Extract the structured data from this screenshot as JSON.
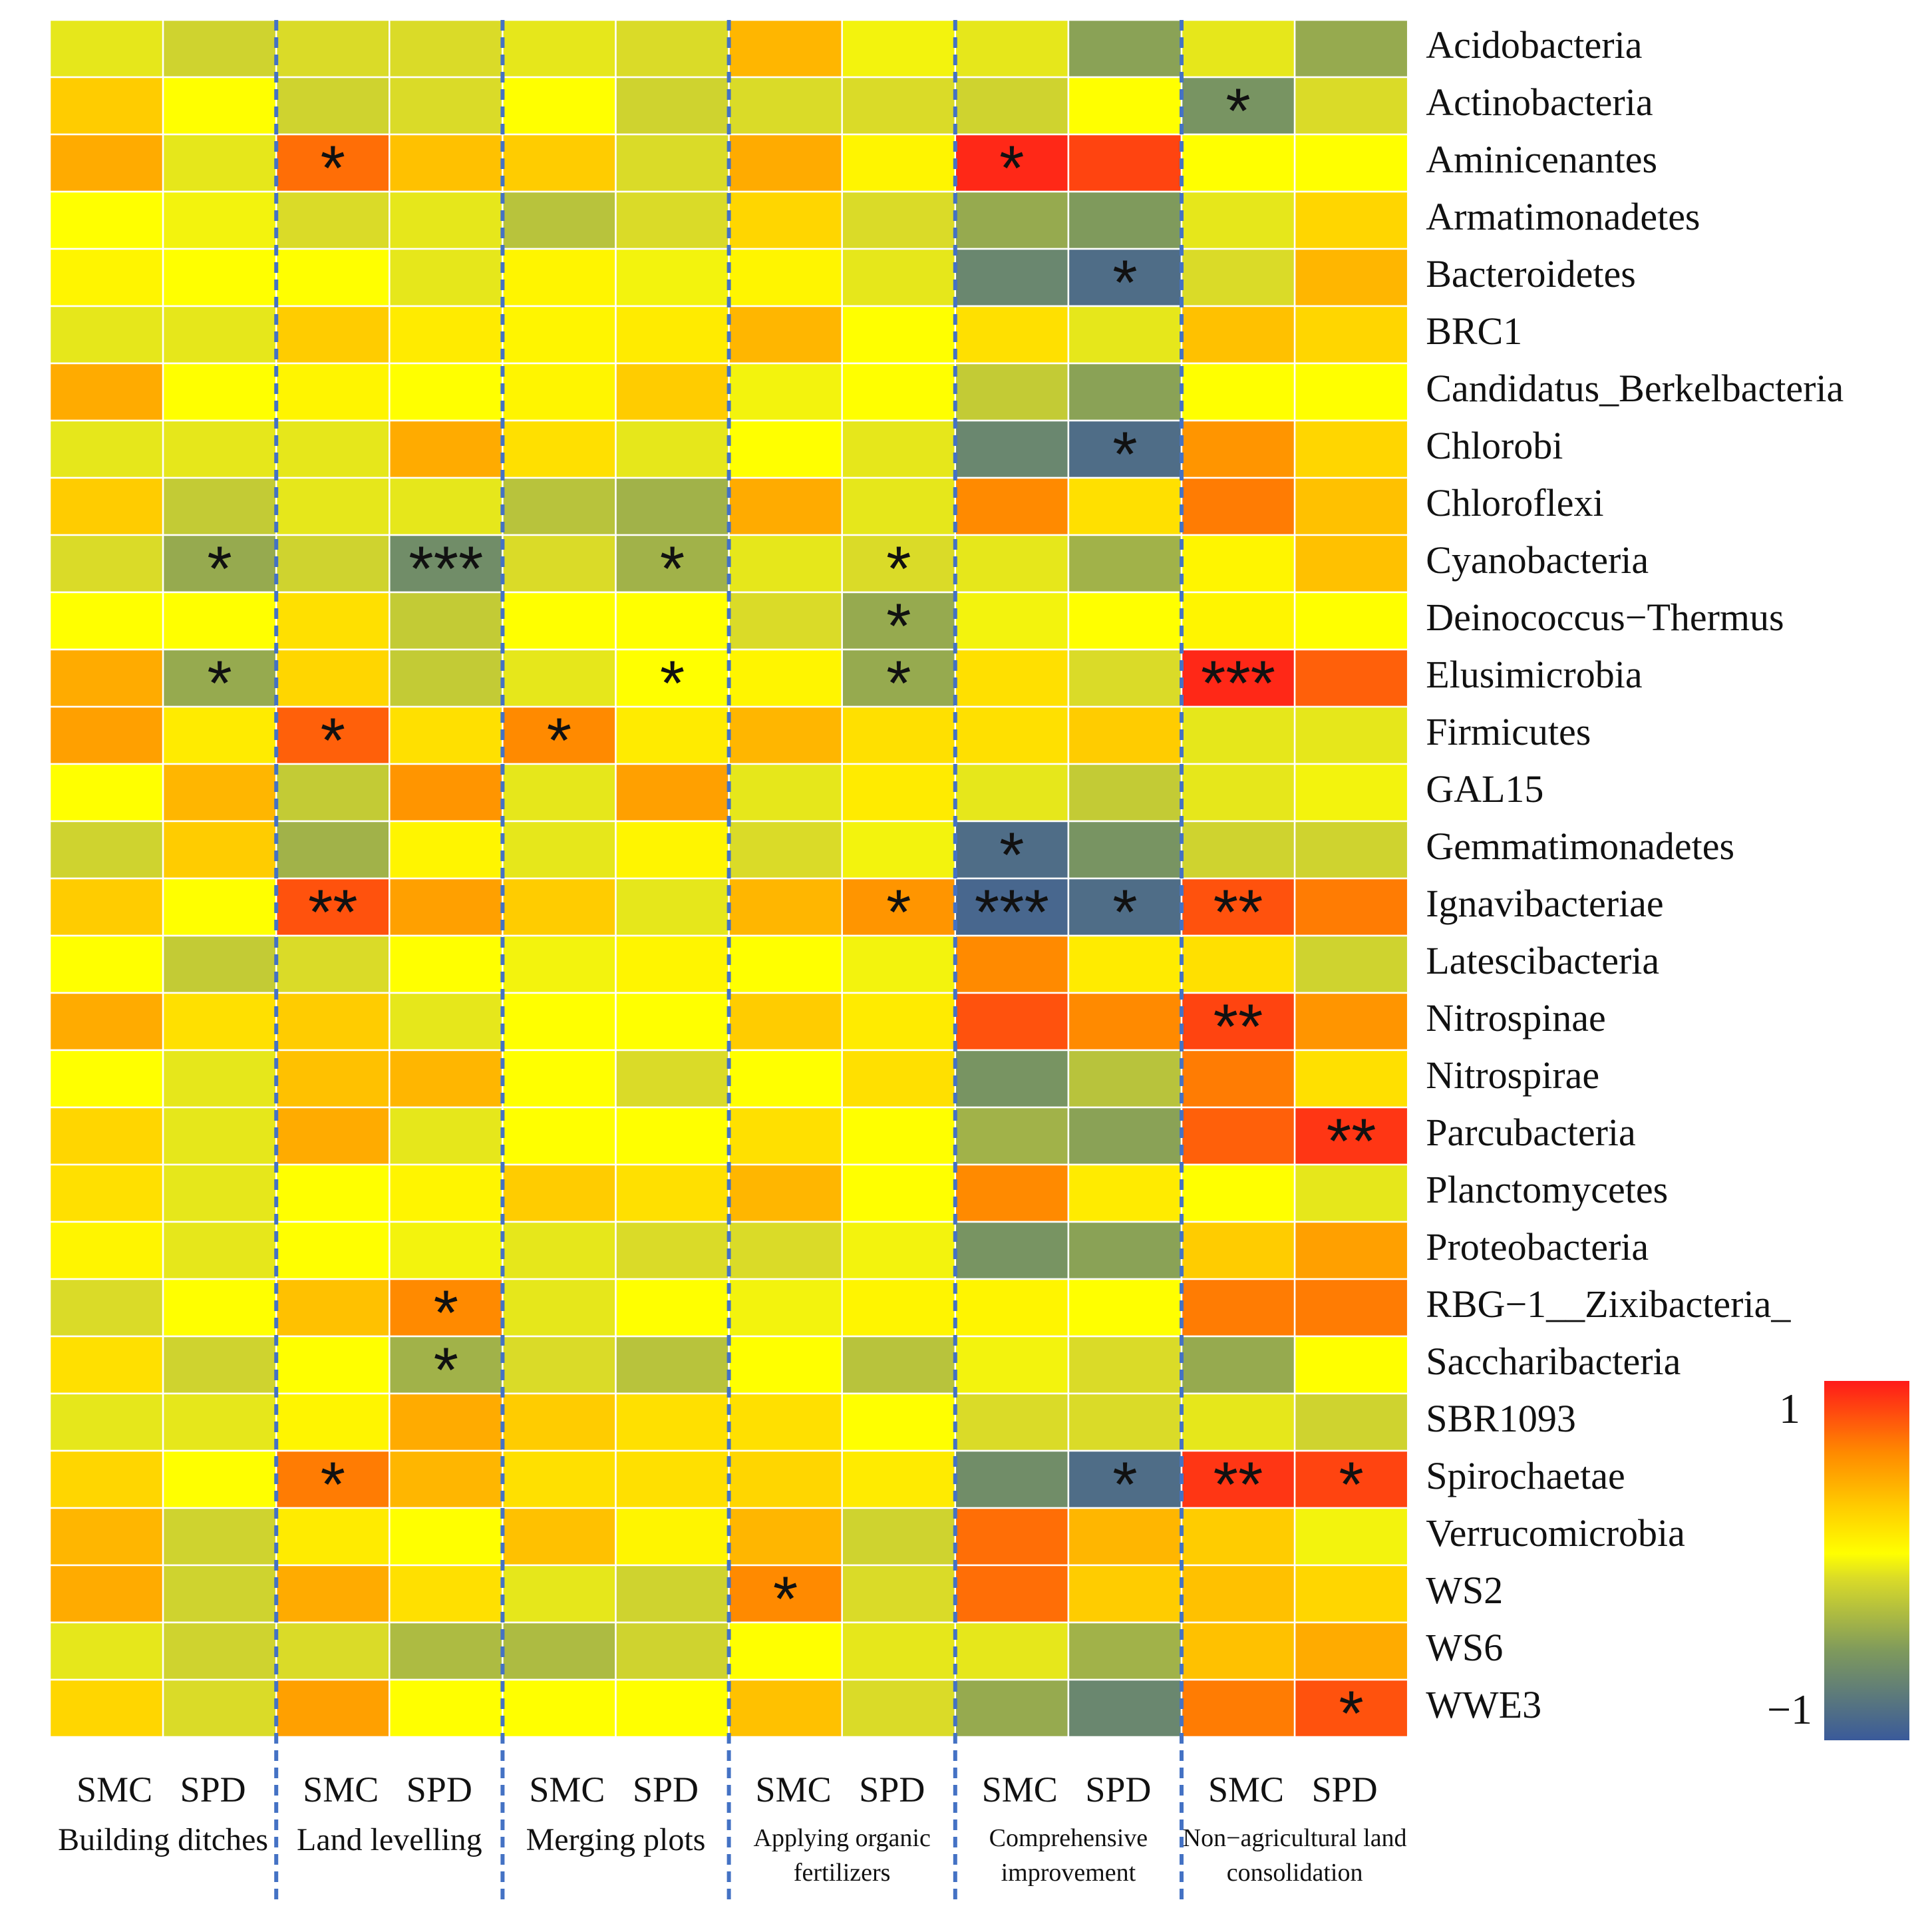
{
  "chart_data": {
    "type": "heatmap",
    "title": "",
    "columns": [
      "SMC",
      "SPD",
      "SMC",
      "SPD",
      "SMC",
      "SPD",
      "SMC",
      "SPD",
      "SMC",
      "SPD",
      "SMC",
      "SPD"
    ],
    "groups": [
      {
        "name": "Building ditches",
        "lines": [
          "Building  ditches"
        ]
      },
      {
        "name": "Land levelling",
        "lines": [
          "Land levelling"
        ]
      },
      {
        "name": "Merging plots",
        "lines": [
          "Merging  plots"
        ]
      },
      {
        "name": "Applying organic fertilizers",
        "lines": [
          "Applying organic",
          "fertilizers"
        ]
      },
      {
        "name": "Comprehensive improvement",
        "lines": [
          "Comprehensive",
          "improvement"
        ]
      },
      {
        "name": "Non-agricultural land consolidation",
        "lines": [
          "Non−agricultural land",
          "consolidation"
        ]
      }
    ],
    "rows": [
      "Acidobacteria",
      "Actinobacteria",
      "Aminicenantes",
      "Armatimonadetes",
      "Bacteroidetes",
      "BRC1",
      "Candidatus_Berkelbacteria",
      "Chlorobi",
      "Chloroflexi",
      "Cyanobacteria",
      "Deinococcus−Thermus",
      "Elusimicrobia",
      "Firmicutes",
      "GAL15",
      "Gemmatimonadetes",
      "Ignavibacteriae",
      "Latescibacteria",
      "Nitrospinae",
      "Nitrospirae",
      "Parcubacteria",
      "Planctomycetes",
      "Proteobacteria",
      "RBG−1__Zixibacteria_",
      "Saccharibacteria",
      "SBR1093",
      "Spirochaetae",
      "Verrucomicrobia",
      "WS2",
      "WS6",
      "WWE3"
    ],
    "values": [
      [
        -0.05,
        -0.15,
        -0.1,
        -0.1,
        -0.05,
        -0.1,
        0.4,
        0.0,
        -0.05,
        -0.45
      ],
      [
        0.3,
        0.05,
        -0.15,
        -0.1,
        0.05,
        -0.15,
        -0.1,
        -0.1,
        -0.15,
        0.05
      ],
      [
        0.45,
        -0.05,
        0.7,
        0.35,
        0.3,
        -0.1,
        0.45,
        0.1,
        0.95,
        0.85
      ],
      [
        0.05,
        0.0,
        -0.1,
        -0.05,
        -0.25,
        -0.1,
        0.25,
        -0.1,
        -0.4,
        -0.5
      ],
      [
        0.1,
        0.05,
        0.05,
        -0.05,
        0.1,
        0.0,
        0.1,
        -0.05,
        -0.65,
        -0.85
      ],
      [
        -0.05,
        -0.05,
        0.3,
        0.15,
        0.1,
        0.15,
        0.4,
        0.05,
        0.2,
        -0.05
      ],
      [
        0.45,
        0.05,
        0.1,
        0.05,
        0.1,
        0.3,
        0.0,
        0.05,
        -0.2,
        -0.45
      ],
      [
        -0.05,
        -0.05,
        -0.05,
        0.45,
        0.2,
        -0.05,
        0.05,
        -0.05,
        -0.65,
        -0.85
      ],
      [
        0.3,
        -0.2,
        -0.05,
        -0.05,
        -0.25,
        -0.35,
        0.45,
        -0.05,
        0.6,
        0.2
      ],
      [
        -0.1,
        -0.4,
        -0.15,
        -0.6,
        -0.1,
        -0.35,
        -0.05,
        -0.1,
        -0.05,
        -0.35
      ],
      [
        0.05,
        0.05,
        0.2,
        -0.2,
        0.05,
        0.05,
        -0.1,
        -0.4,
        0.0,
        0.05
      ],
      [
        0.45,
        -0.4,
        0.25,
        -0.2,
        -0.05,
        0.05,
        0.1,
        -0.4,
        0.2,
        -0.1
      ],
      [
        0.5,
        0.15,
        0.75,
        0.2,
        0.6,
        0.15,
        0.4,
        0.2,
        0.2,
        0.3
      ],
      [
        0.05,
        0.4,
        -0.2,
        0.55,
        -0.05,
        0.5,
        -0.05,
        0.15,
        -0.05,
        -0.2
      ],
      [
        -0.15,
        0.3,
        -0.35,
        0.1,
        -0.05,
        0.1,
        -0.1,
        0.0,
        -0.85,
        -0.55
      ],
      [
        0.3,
        0.05,
        0.8,
        0.5,
        0.3,
        -0.05,
        0.4,
        0.55,
        -0.9,
        -0.85
      ],
      [
        0.05,
        -0.2,
        -0.1,
        0.05,
        0.0,
        0.1,
        0.05,
        0.0,
        0.6,
        0.15
      ],
      [
        0.45,
        0.2,
        0.3,
        -0.05,
        0.05,
        0.05,
        0.3,
        0.15,
        0.8,
        0.6
      ],
      [
        0.05,
        -0.05,
        0.35,
        0.4,
        0.05,
        -0.1,
        0.05,
        0.2,
        -0.55,
        -0.25
      ],
      [
        0.25,
        -0.05,
        0.45,
        -0.05,
        0.05,
        0.05,
        0.2,
        0.05,
        -0.35,
        -0.45
      ],
      [
        0.2,
        -0.05,
        0.05,
        0.1,
        0.3,
        0.2,
        0.4,
        0.05,
        0.6,
        0.15
      ],
      [
        0.1,
        -0.05,
        0.05,
        0.0,
        -0.05,
        -0.1,
        -0.1,
        0.0,
        -0.55,
        -0.45
      ],
      [
        -0.1,
        0.05,
        0.35,
        0.6,
        -0.05,
        0.05,
        0.0,
        0.1,
        0.1,
        0.05
      ],
      [
        0.2,
        -0.15,
        0.05,
        -0.35,
        -0.1,
        -0.25,
        0.05,
        -0.25,
        0.0,
        -0.1
      ],
      [
        -0.05,
        -0.05,
        0.1,
        0.45,
        0.3,
        0.2,
        0.2,
        0.05,
        -0.1,
        -0.1
      ],
      [
        0.25,
        0.05,
        0.65,
        0.4,
        0.2,
        0.2,
        0.25,
        0.15,
        -0.6,
        -0.85
      ],
      [
        0.4,
        -0.15,
        0.15,
        0.05,
        0.35,
        0.1,
        0.4,
        -0.15,
        0.7,
        0.4
      ],
      [
        0.45,
        -0.15,
        0.45,
        0.2,
        -0.05,
        -0.15,
        0.6,
        -0.1,
        0.7,
        0.3
      ],
      [
        -0.05,
        -0.15,
        -0.1,
        -0.3,
        -0.3,
        -0.15,
        0.05,
        -0.05,
        -0.05,
        -0.35
      ],
      [
        0.25,
        -0.1,
        0.5,
        0.05,
        0.05,
        0.05,
        0.35,
        -0.1,
        -0.4,
        -0.65
      ]
    ],
    "values_nac": [
      [
        -0.05,
        -0.4
      ],
      [
        -0.55,
        -0.1
      ],
      [
        0.05,
        0.05
      ],
      [
        -0.05,
        0.25
      ],
      [
        -0.1,
        0.4
      ],
      [
        0.35,
        0.25
      ],
      [
        0.05,
        0.05
      ],
      [
        0.55,
        0.25
      ],
      [
        0.65,
        0.35
      ],
      [
        0.1,
        0.35
      ],
      [
        0.1,
        0.05
      ],
      [
        0.95,
        0.75
      ],
      [
        -0.05,
        -0.05
      ],
      [
        -0.05,
        0.0
      ],
      [
        -0.15,
        -0.15
      ],
      [
        0.8,
        0.65
      ],
      [
        0.2,
        -0.15
      ],
      [
        0.85,
        0.55
      ],
      [
        0.65,
        0.2
      ],
      [
        0.75,
        0.9
      ],
      [
        0.05,
        -0.05
      ],
      [
        0.3,
        0.5
      ],
      [
        0.65,
        0.65
      ],
      [
        -0.4,
        0.05
      ],
      [
        -0.05,
        -0.15
      ],
      [
        0.9,
        0.85
      ],
      [
        0.3,
        0.0
      ],
      [
        0.35,
        0.25
      ],
      [
        0.35,
        0.45
      ],
      [
        0.65,
        0.8
      ]
    ],
    "significance": [
      [
        "",
        "",
        "",
        "",
        "",
        "",
        "",
        "",
        "",
        "",
        "",
        ""
      ],
      [
        "",
        "",
        "",
        "",
        "",
        "",
        "",
        "",
        "",
        "",
        "*",
        ""
      ],
      [
        "",
        "",
        "*",
        "",
        "",
        "",
        "",
        "",
        "*",
        "",
        "",
        ""
      ],
      [
        "",
        "",
        "",
        "",
        "",
        "",
        "",
        "",
        "",
        "",
        "",
        ""
      ],
      [
        "",
        "",
        "",
        "",
        "",
        "",
        "",
        "",
        "",
        "*",
        "",
        ""
      ],
      [
        "",
        "",
        "",
        "",
        "",
        "",
        "",
        "",
        "",
        "",
        "",
        ""
      ],
      [
        "",
        "",
        "",
        "",
        "",
        "",
        "",
        "",
        "",
        "",
        "",
        ""
      ],
      [
        "",
        "",
        "",
        "",
        "",
        "",
        "",
        "",
        "",
        "*",
        "",
        ""
      ],
      [
        "",
        "",
        "",
        "",
        "",
        "",
        "",
        "",
        "",
        "",
        "",
        ""
      ],
      [
        "",
        "*",
        "",
        "***",
        "",
        "*",
        "",
        "*",
        "",
        "",
        "",
        ""
      ],
      [
        "",
        "",
        "",
        "",
        "",
        "",
        "",
        "*",
        "",
        "",
        "",
        ""
      ],
      [
        "",
        "*",
        "",
        "",
        "",
        "*",
        "",
        "*",
        "",
        "",
        "***",
        ""
      ],
      [
        "",
        "",
        "*",
        "",
        "*",
        "",
        "",
        "",
        "",
        "",
        "",
        ""
      ],
      [
        "",
        "",
        "",
        "",
        "",
        "",
        "",
        "",
        "",
        "",
        "",
        ""
      ],
      [
        "",
        "",
        "",
        "",
        "",
        "",
        "",
        "",
        "*",
        "",
        "",
        ""
      ],
      [
        "",
        "",
        "**",
        "",
        "",
        "",
        "",
        "*",
        "***",
        "*",
        "**",
        ""
      ],
      [
        "",
        "",
        "",
        "",
        "",
        "",
        "",
        "",
        "",
        "",
        "",
        ""
      ],
      [
        "",
        "",
        "",
        "",
        "",
        "",
        "",
        "",
        "",
        "",
        "**",
        ""
      ],
      [
        "",
        "",
        "",
        "",
        "",
        "",
        "",
        "",
        "",
        "",
        "",
        ""
      ],
      [
        "",
        "",
        "",
        "",
        "",
        "",
        "",
        "",
        "",
        "",
        "",
        "**"
      ],
      [
        "",
        "",
        "",
        "",
        "",
        "",
        "",
        "",
        "",
        "",
        "",
        ""
      ],
      [
        "",
        "",
        "",
        "",
        "",
        "",
        "",
        "",
        "",
        "",
        "",
        ""
      ],
      [
        "",
        "",
        "",
        "*",
        "",
        "",
        "",
        "",
        "",
        "",
        "",
        ""
      ],
      [
        "",
        "",
        "",
        "*",
        "",
        "",
        "",
        "",
        "",
        "",
        "",
        ""
      ],
      [
        "",
        "",
        "",
        "",
        "",
        "",
        "",
        "",
        "",
        "",
        "",
        ""
      ],
      [
        "",
        "",
        "*",
        "",
        "",
        "",
        "",
        "",
        "",
        "*",
        "**",
        "*"
      ],
      [
        "",
        "",
        "",
        "",
        "",
        "",
        "",
        "",
        "",
        "",
        "",
        ""
      ],
      [
        "",
        "",
        "",
        "",
        "",
        "",
        "*",
        "",
        "",
        "",
        "",
        ""
      ],
      [
        "",
        "",
        "",
        "",
        "",
        "",
        "",
        "",
        "",
        "",
        "",
        ""
      ],
      [
        "",
        "",
        "",
        "",
        "",
        "",
        "",
        "",
        "",
        "",
        "",
        "*"
      ]
    ],
    "color_scale": {
      "min": -1,
      "max": 1,
      "min_label": "−1",
      "max_label": "1",
      "stops": [
        {
          "value": -1,
          "color": "#3a5a9a"
        },
        {
          "value": -0.5,
          "color": "#7f9a5c"
        },
        {
          "value": -0.1,
          "color": "#dadb28"
        },
        {
          "value": 0.05,
          "color": "#ffff00"
        },
        {
          "value": 0.3,
          "color": "#ffcc00"
        },
        {
          "value": 0.6,
          "color": "#ff8a00"
        },
        {
          "value": 1,
          "color": "#ff1a1a"
        }
      ]
    },
    "legend_position": "right"
  }
}
